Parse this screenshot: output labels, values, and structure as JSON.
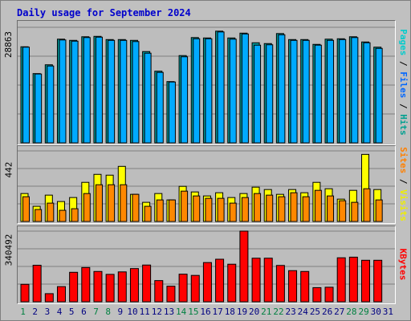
{
  "title": "Daily usage for September 2024",
  "colors": {
    "hits": "#00a090",
    "files": "#0066ff",
    "pages": "#00cccc",
    "visits": "#eeee00",
    "sites": "#ff8000",
    "kbytes": "#ff0000",
    "hits_bar": "#009999",
    "files_bar": "#00aaff",
    "visits_bar": "#ffff00",
    "sites_bar": "#ff8800",
    "kbytes_bar": "#ff0000",
    "weekend_day": "#008040",
    "weekday_day": "#000080"
  },
  "panels": {
    "hits": {
      "ymax": "28863",
      "labels": [
        "Pages",
        "Files",
        "Hits"
      ]
    },
    "visits": {
      "ymax": "442",
      "labels": [
        "Sites",
        "Visits"
      ]
    },
    "kbytes": {
      "ymax": "340492",
      "labels": [
        "KBytes"
      ]
    }
  },
  "chart_data": [
    {
      "type": "bar",
      "title": "Daily usage for September 2024",
      "ylabel": "Pages / Files / Hits",
      "ylim": [
        0,
        28863
      ],
      "categories": [
        "1",
        "2",
        "3",
        "4",
        "5",
        "6",
        "7",
        "8",
        "9",
        "10",
        "11",
        "12",
        "13",
        "14",
        "15",
        "16",
        "17",
        "18",
        "19",
        "20",
        "21",
        "22",
        "23",
        "24",
        "25",
        "26",
        "27",
        "28",
        "29",
        "30",
        "31"
      ],
      "series": [
        {
          "name": "Hits",
          "values": [
            24000,
            17300,
            19500,
            25900,
            25600,
            26500,
            26600,
            25800,
            25800,
            25600,
            22800,
            17900,
            15300,
            21800,
            26300,
            26200,
            27900,
            26200,
            27400,
            25000,
            24800,
            27300,
            25800,
            25800,
            24600,
            25900,
            26000,
            26500,
            25200,
            23900,
            0
          ]
        },
        {
          "name": "Files",
          "values": [
            23900,
            17200,
            19200,
            25700,
            25400,
            26300,
            26400,
            25600,
            25600,
            25300,
            22400,
            17600,
            15200,
            21500,
            26000,
            26000,
            27700,
            25900,
            27200,
            24400,
            24500,
            27000,
            25600,
            25600,
            24400,
            25600,
            25800,
            26300,
            25000,
            23600,
            0
          ]
        }
      ]
    },
    {
      "type": "bar",
      "ylabel": "Sites / Visits",
      "ylim": [
        0,
        442
      ],
      "categories": [
        "1",
        "2",
        "3",
        "4",
        "5",
        "6",
        "7",
        "8",
        "9",
        "10",
        "11",
        "12",
        "13",
        "14",
        "15",
        "16",
        "17",
        "18",
        "19",
        "20",
        "21",
        "22",
        "23",
        "24",
        "25",
        "26",
        "27",
        "28",
        "29",
        "30",
        "31"
      ],
      "series": [
        {
          "name": "Visits",
          "values": [
            175,
            95,
            165,
            125,
            150,
            245,
            295,
            290,
            345,
            170,
            120,
            175,
            135,
            220,
            185,
            160,
            180,
            150,
            175,
            215,
            200,
            170,
            200,
            180,
            245,
            205,
            140,
            195,
            420,
            200,
            0
          ]
        },
        {
          "name": "Sites",
          "values": [
            155,
            75,
            115,
            70,
            80,
            175,
            230,
            230,
            230,
            170,
            95,
            135,
            135,
            190,
            160,
            145,
            145,
            115,
            150,
            175,
            165,
            155,
            180,
            155,
            195,
            160,
            130,
            120,
            205,
            135,
            0
          ]
        }
      ]
    },
    {
      "type": "bar",
      "ylabel": "KBytes",
      "ylim": [
        0,
        340492
      ],
      "categories": [
        "1",
        "2",
        "3",
        "4",
        "5",
        "6",
        "7",
        "8",
        "9",
        "10",
        "11",
        "12",
        "13",
        "14",
        "15",
        "16",
        "17",
        "18",
        "19",
        "20",
        "21",
        "22",
        "23",
        "24",
        "25",
        "26",
        "27",
        "28",
        "29",
        "30",
        "31"
      ],
      "series": [
        {
          "name": "KBytes",
          "values": [
            84000,
            176000,
            39000,
            73000,
            142000,
            165000,
            146000,
            132000,
            144000,
            160000,
            177000,
            102000,
            75000,
            133000,
            127000,
            189000,
            205000,
            181000,
            340492,
            210000,
            210000,
            175000,
            150000,
            146000,
            68000,
            70000,
            212000,
            215000,
            200000,
            200000,
            0
          ]
        }
      ]
    }
  ],
  "x_axis": {
    "days": [
      "1",
      "2",
      "3",
      "4",
      "5",
      "6",
      "7",
      "8",
      "9",
      "10",
      "11",
      "12",
      "13",
      "14",
      "15",
      "16",
      "17",
      "18",
      "19",
      "20",
      "21",
      "22",
      "23",
      "24",
      "25",
      "26",
      "27",
      "28",
      "29",
      "30",
      "31"
    ],
    "weekend": [
      1,
      7,
      8,
      14,
      15,
      21,
      22,
      28,
      29
    ]
  }
}
